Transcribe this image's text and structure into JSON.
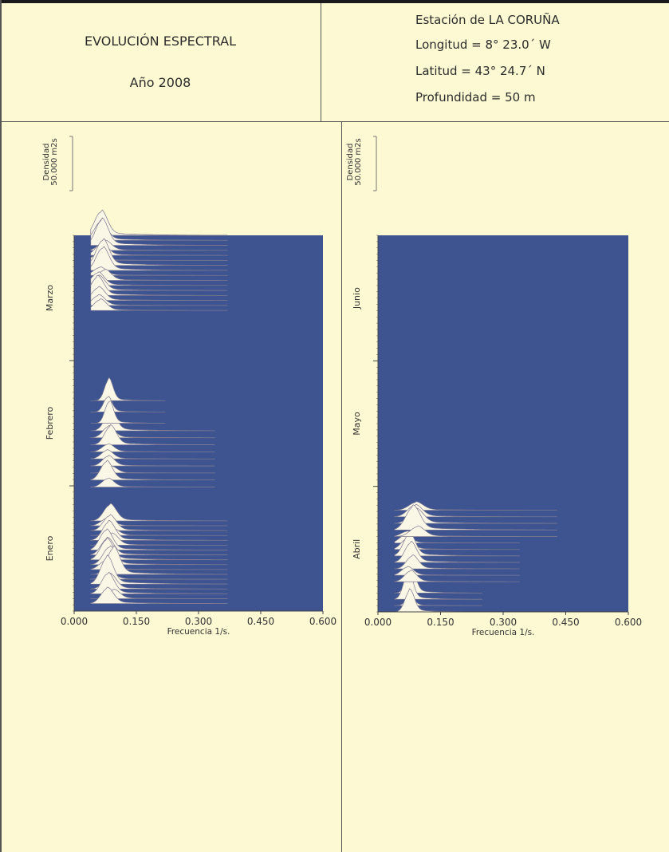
{
  "header": {
    "title": "EVOLUCIÓN ESPECTRAL",
    "year": "Año 2008",
    "station": "Estación de LA CORUÑA",
    "longitude": "Longitud = 8°  23.0´  W",
    "latitude": "Latitud = 43°  24.7´  N",
    "depth": "Profundidad = 50 m"
  },
  "colors": {
    "background": "#fdf9d3",
    "plot_fill": "#3d5490",
    "spectra_fill": "#fbf7e6",
    "spectra_line": "#7d7891"
  },
  "chart_data": [
    {
      "type": "area",
      "panel": "left",
      "density_scale_label": [
        "Densidad",
        "50.000 m2s"
      ],
      "xlabel": "Frecuencia 1/s.",
      "xlim": [
        0,
        0.6
      ],
      "x_ticks": [
        "0.000",
        "0.150",
        "0.300",
        "0.450",
        "0.600"
      ],
      "months": [
        "Enero",
        "Febrero",
        "Marzo"
      ],
      "spectra_groups": [
        {
          "month": "Enero",
          "time_start": 0.02,
          "time_end": 0.24,
          "peak_freq": 0.085,
          "spread": 0.07,
          "lines": 18
        },
        {
          "month": "Febrero",
          "time_start": 0.33,
          "time_end": 0.48,
          "peak_freq": 0.08,
          "spread": 0.06,
          "lines": 9
        },
        {
          "month": "Febrero",
          "time_start": 0.5,
          "time_end": 0.56,
          "peak_freq": 0.09,
          "spread": 0.02,
          "lines": 3
        },
        {
          "month": "Marzo",
          "time_start": 0.8,
          "time_end": 1.0,
          "peak_freq": 0.065,
          "spread": 0.07,
          "lines": 16
        }
      ]
    },
    {
      "type": "area",
      "panel": "right",
      "density_scale_label": [
        "Densidad",
        "50.000 m2s"
      ],
      "xlabel": "Frecuencia 1/s.",
      "xlim": [
        0,
        0.6
      ],
      "x_ticks": [
        "0.000",
        "0.150",
        "0.300",
        "0.450",
        "0.600"
      ],
      "months": [
        "Abril",
        "Mayo",
        "Junio"
      ],
      "spectra_groups": [
        {
          "month": "Abril",
          "time_start": 0.0,
          "time_end": 0.05,
          "peak_freq": 0.07,
          "spread": 0.03,
          "lines": 4
        },
        {
          "month": "Abril",
          "time_start": 0.08,
          "time_end": 0.2,
          "peak_freq": 0.075,
          "spread": 0.06,
          "lines": 8
        },
        {
          "month": "Abril",
          "time_start": 0.2,
          "time_end": 0.27,
          "peak_freq": 0.09,
          "spread": 0.09,
          "lines": 5
        }
      ]
    }
  ]
}
